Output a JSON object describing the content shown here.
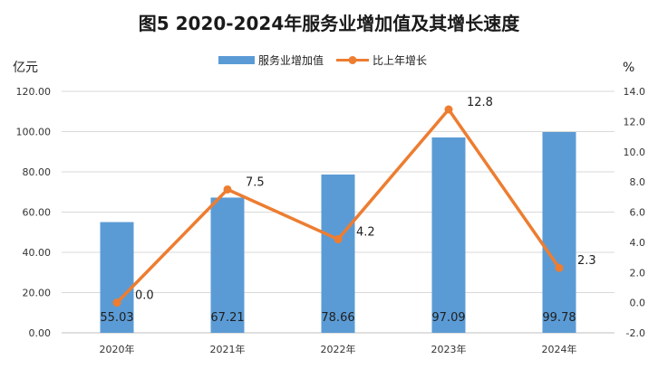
{
  "chart_data": {
    "type": "bar+line",
    "title": "图5  2020-2024年服务业增加值及其增长速度",
    "left_unit": "亿元",
    "right_unit": "%",
    "categories": [
      "2020年",
      "2021年",
      "2022年",
      "2023年",
      "2024年"
    ],
    "series": [
      {
        "name": "服务业增加值",
        "type": "bar",
        "axis": "left",
        "values": [
          55.03,
          67.21,
          78.66,
          97.09,
          99.78
        ],
        "labels": [
          "55.03",
          "67.21",
          "78.66",
          "97.09",
          "99.78"
        ]
      },
      {
        "name": "比上年增长",
        "type": "line",
        "axis": "right",
        "values": [
          0.0,
          7.5,
          4.2,
          12.8,
          2.3
        ],
        "labels": [
          "0.0",
          "7.5",
          "4.2",
          "12.8",
          "2.3"
        ]
      }
    ],
    "left_axis": {
      "min": 0,
      "max": 120,
      "ticks": [
        0,
        20,
        40,
        60,
        80,
        100,
        120
      ],
      "tick_labels": [
        "0.00",
        "20.00",
        "40.00",
        "60.00",
        "80.00",
        "100.00",
        "120.00"
      ]
    },
    "right_axis": {
      "min": -2,
      "max": 14,
      "ticks": [
        -2,
        0,
        2,
        4,
        6,
        8,
        10,
        12,
        14
      ],
      "tick_labels": [
        "-2.0",
        "0.0",
        "2.0",
        "4.0",
        "6.0",
        "8.0",
        "10.0",
        "12.0",
        "14.0"
      ]
    },
    "legend_position": "top-center",
    "grid": true,
    "colors": {
      "bar": "#5b9bd5",
      "line": "#ed7d31",
      "grid": "#d9d9d9"
    }
  }
}
